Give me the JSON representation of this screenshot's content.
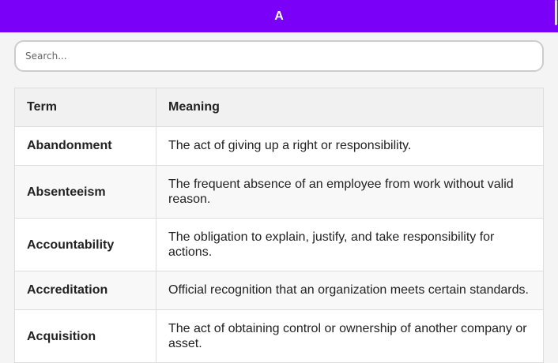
{
  "header": {
    "title": "A"
  },
  "search": {
    "placeholder": "Search...",
    "value": ""
  },
  "table": {
    "columns": [
      "Term",
      "Meaning"
    ],
    "rows": [
      {
        "term": "Abandonment",
        "meaning": "The act of giving up a right or responsibility."
      },
      {
        "term": "Absenteeism",
        "meaning": "The frequent absence of an employee from work without valid reason."
      },
      {
        "term": "Accountability",
        "meaning": "The obligation to explain, justify, and take responsibility for actions."
      },
      {
        "term": "Accreditation",
        "meaning": "Official recognition that an organization meets certain standards."
      },
      {
        "term": "Acquisition",
        "meaning": "The act of obtaining control or ownership of another company or asset."
      }
    ]
  },
  "colors": {
    "header_bg": "#7a00f8",
    "page_bg": "#f4f4f4"
  }
}
